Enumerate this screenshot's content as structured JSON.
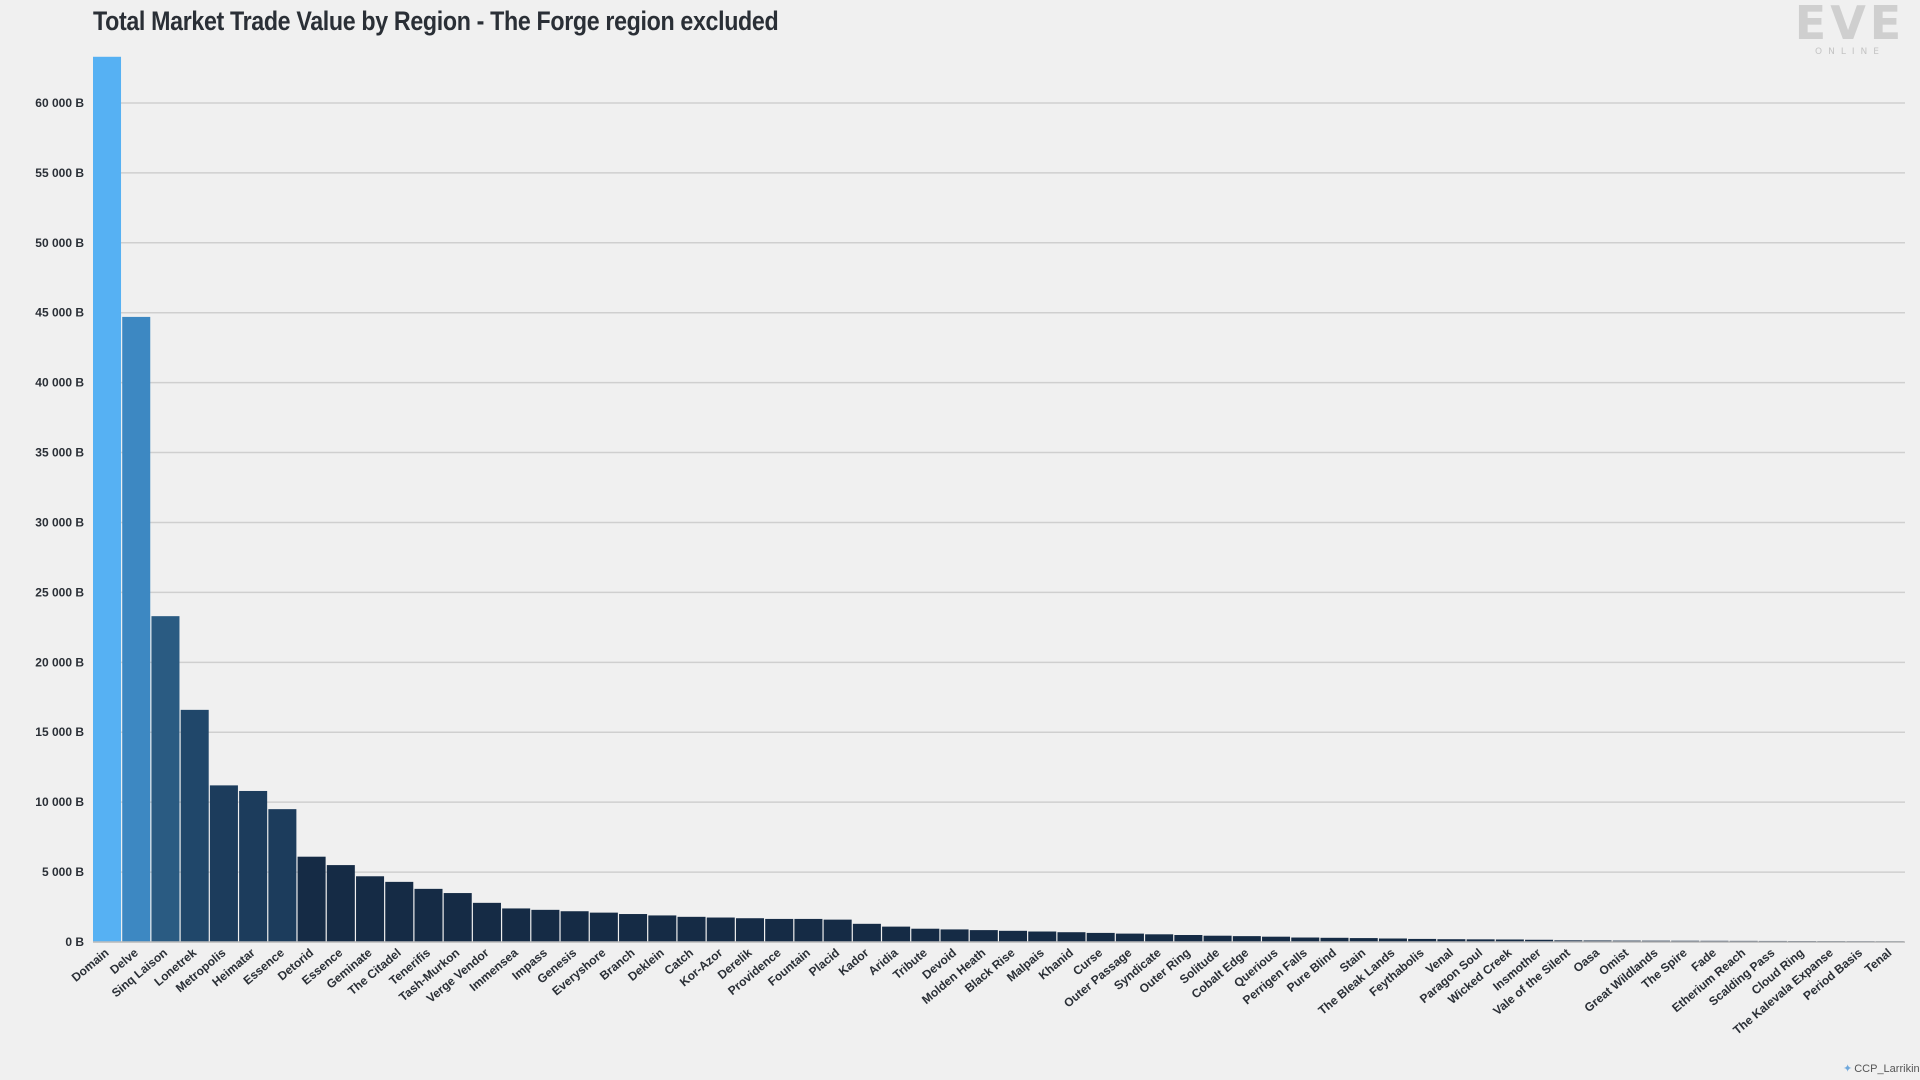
{
  "chart_data": {
    "type": "bar",
    "title": "Total Market Trade Value by Region - The Forge region excluded",
    "xlabel": "",
    "ylabel": "",
    "ylim": [
      0,
      64000
    ],
    "yticks": [
      0,
      5000,
      10000,
      15000,
      20000,
      25000,
      30000,
      35000,
      40000,
      45000,
      50000,
      55000,
      60000
    ],
    "ytick_labels": [
      "0 B",
      "5 000 B",
      "10 000 B",
      "15 000 B",
      "20 000 B",
      "25 000 B",
      "30 000 B",
      "35 000 B",
      "40 000 B",
      "45 000 B",
      "50 000 B",
      "55 000 B",
      "60 000 B"
    ],
    "grid": true,
    "categories": [
      "Domain",
      "Delve",
      "Sinq Laison",
      "Lonetrek",
      "Metropolis",
      "Heimatar",
      "Essence",
      "Detorid",
      "Essence",
      "Geminate",
      "The Citadel",
      "Tenerifis",
      "Tash-Murkon",
      "Verge Vendor",
      "Immensea",
      "Impass",
      "Genesis",
      "Everyshore",
      "Branch",
      "Deklein",
      "Catch",
      "Kor-Azor",
      "Derelik",
      "Providence",
      "Fountain",
      "Placid",
      "Kador",
      "Aridia",
      "Tribute",
      "Devoid",
      "Molden Heath",
      "Black Rise",
      "Malpais",
      "Khanid",
      "Curse",
      "Outer Passage",
      "Syndicate",
      "Outer Ring",
      "Solitude",
      "Cobalt Edge",
      "Querious",
      "Perrigen Falls",
      "Pure Blind",
      "Stain",
      "The Bleak Lands",
      "Feythabolis",
      "Venal",
      "Paragon Soul",
      "Wicked Creek",
      "Insmother",
      "Vale of the Silent",
      "Oasa",
      "Omist",
      "Great Wildlands",
      "The Spire",
      "Fade",
      "Etherium Reach",
      "Scalding Pass",
      "Cloud Ring",
      "The Kalevala Expanse",
      "Period Basis",
      "Tenal"
    ],
    "values": [
      63300,
      44700,
      23300,
      16600,
      11200,
      10800,
      9500,
      6100,
      5500,
      4700,
      4300,
      3800,
      3500,
      2800,
      2400,
      2300,
      2200,
      2100,
      2000,
      1900,
      1800,
      1750,
      1700,
      1650,
      1650,
      1600,
      1300,
      1100,
      950,
      900,
      850,
      800,
      750,
      700,
      650,
      600,
      550,
      500,
      450,
      420,
      380,
      320,
      300,
      280,
      250,
      220,
      200,
      190,
      180,
      160,
      120,
      110,
      100,
      95,
      90,
      85,
      80,
      75,
      70,
      65,
      60,
      55
    ],
    "colors": [
      "#56b1f3",
      "#3d88c2",
      "#2a5b82",
      "#20476a",
      "#1c3c5c",
      "#1c3c5c",
      "#1c3c5c"
    ],
    "default_color": "#152b45"
  },
  "branding": {
    "logo_text": "EVE",
    "logo_subtext": "ONLINE",
    "credit": "CCP_Larrikin"
  }
}
